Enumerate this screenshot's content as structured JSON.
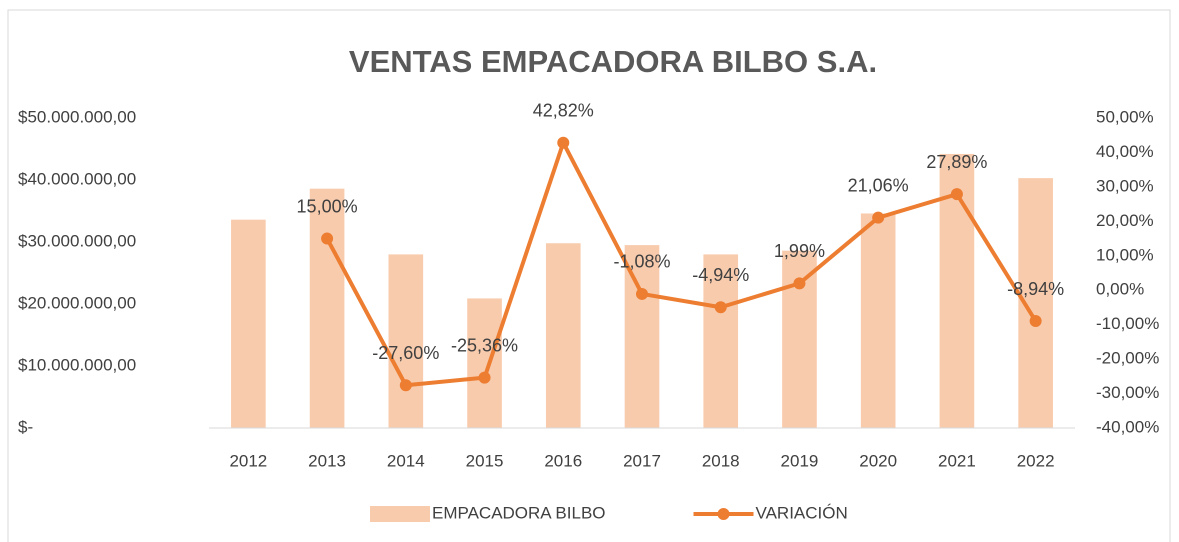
{
  "chart_data": {
    "type": "bar+line",
    "title": "VENTAS EMPACADORA BILBO S.A.",
    "categories": [
      "2012",
      "2013",
      "2014",
      "2015",
      "2016",
      "2017",
      "2018",
      "2019",
      "2020",
      "2021",
      "2022"
    ],
    "series": [
      {
        "name": "EMPACADORA BILBO",
        "type": "bar",
        "color": "#f8cbad",
        "axis": "y",
        "values": [
          33600000,
          38600000,
          28000000,
          20900000,
          29800000,
          29500000,
          28000000,
          28600000,
          34600000,
          44200000,
          40300000
        ]
      },
      {
        "name": "VARIACIÓN",
        "type": "line",
        "color": "#ed7d31",
        "axis": "y2",
        "values": [
          null,
          15.0,
          -27.6,
          -25.36,
          42.82,
          -1.08,
          -4.94,
          1.99,
          21.06,
          27.89,
          -8.94
        ],
        "value_labels": [
          null,
          "15,00%",
          "-27,60%",
          "-25,36%",
          "42,82%",
          "-1,08%",
          "-4,94%",
          "1,99%",
          "21,06%",
          "27,89%",
          "-8,94%"
        ]
      }
    ],
    "ylim": [
      0,
      50000000
    ],
    "yticks": [
      {
        "value": 0,
        "label": "$-"
      },
      {
        "value": 10000000,
        "label": "$10.000.000,00"
      },
      {
        "value": 20000000,
        "label": "$20.000.000,00"
      },
      {
        "value": 30000000,
        "label": "$30.000.000,00"
      },
      {
        "value": 40000000,
        "label": "$40.000.000,00"
      },
      {
        "value": 50000000,
        "label": "$50.000.000,00"
      }
    ],
    "y2lim": [
      -40,
      50
    ],
    "y2ticks": [
      {
        "value": -40,
        "label": "-40,00%"
      },
      {
        "value": -30,
        "label": "-30,00%"
      },
      {
        "value": -20,
        "label": "-20,00%"
      },
      {
        "value": -10,
        "label": "-10,00%"
      },
      {
        "value": 0,
        "label": "0,00%"
      },
      {
        "value": 10,
        "label": "10,00%"
      },
      {
        "value": 20,
        "label": "20,00%"
      },
      {
        "value": 30,
        "label": "30,00%"
      },
      {
        "value": 40,
        "label": "40,00%"
      },
      {
        "value": 50,
        "label": "50,00%"
      }
    ],
    "legend": "bottom"
  }
}
